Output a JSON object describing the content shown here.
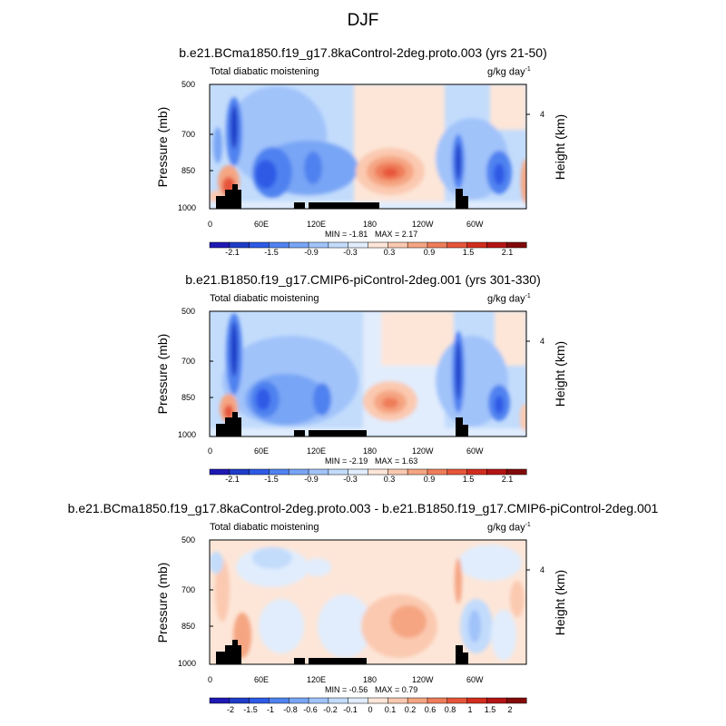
{
  "title": "DJF",
  "chart_data": [
    {
      "type": "heatmap",
      "title": "b.e21.BCma1850.f19_g17.8kaControl-2deg.proto.003 (yrs 21-50)",
      "variable": "Total diabatic moistening",
      "units": "g/kg day",
      "units_exp": "-1",
      "ylabel": "Pressure (mb)",
      "ylabel_right": "Height (km)",
      "y_ticks": [
        "500",
        "700",
        "850",
        "1000"
      ],
      "y_right_ticks": [
        "4"
      ],
      "x_ticks": [
        "0",
        "60E",
        "120E",
        "180",
        "120W",
        "60W"
      ],
      "min_label": "MIN = -1.81",
      "max_label": "MAX =  2.17",
      "min": -1.81,
      "max": 2.17,
      "colorbar_labels": [
        "-2.1",
        "-1.5",
        "-0.9",
        "-0.3",
        "0.3",
        "0.9",
        "1.5",
        "2.1"
      ],
      "colorbar_colors": [
        "#1e19b4",
        "#1e3cc8",
        "#2d5ae6",
        "#5082f0",
        "#78a5f5",
        "#a0c3fa",
        "#c3dcfc",
        "#e1edfd",
        "#fde6d8",
        "#fbc9b0",
        "#f5a582",
        "#ef7d5a",
        "#e6553a",
        "#d22d1e",
        "#b41414",
        "#820a0a"
      ]
    },
    {
      "type": "heatmap",
      "title": "b.e21.B1850.f19_g17.CMIP6-piControl-2deg.001 (yrs 301-330)",
      "variable": "Total diabatic moistening",
      "units": "g/kg day",
      "units_exp": "-1",
      "ylabel": "Pressure (mb)",
      "ylabel_right": "Height (km)",
      "y_ticks": [
        "500",
        "700",
        "850",
        "1000"
      ],
      "y_right_ticks": [
        "4"
      ],
      "x_ticks": [
        "0",
        "60E",
        "120E",
        "180",
        "120W",
        "60W"
      ],
      "min_label": "MIN = -2.19",
      "max_label": "MAX =  1.63",
      "min": -2.19,
      "max": 1.63,
      "colorbar_labels": [
        "-2.1",
        "-1.5",
        "-0.9",
        "-0.3",
        "0.3",
        "0.9",
        "1.5",
        "2.1"
      ],
      "colorbar_colors": [
        "#1e19b4",
        "#1e3cc8",
        "#2d5ae6",
        "#5082f0",
        "#78a5f5",
        "#a0c3fa",
        "#c3dcfc",
        "#e1edfd",
        "#fde6d8",
        "#fbc9b0",
        "#f5a582",
        "#ef7d5a",
        "#e6553a",
        "#d22d1e",
        "#b41414",
        "#820a0a"
      ]
    },
    {
      "type": "heatmap",
      "title": "b.e21.BCma1850.f19_g17.8kaControl-2deg.proto.003 - b.e21.B1850.f19_g17.CMIP6-piControl-2deg.001",
      "variable": "Total diabatic moistening",
      "units": "g/kg day",
      "units_exp": "-1",
      "ylabel": "Pressure (mb)",
      "ylabel_right": "Height (km)",
      "y_ticks": [
        "500",
        "700",
        "850",
        "1000"
      ],
      "y_right_ticks": [
        "4"
      ],
      "x_ticks": [
        "0",
        "60E",
        "120E",
        "180",
        "120W",
        "60W"
      ],
      "min_label": "MIN = -0.56",
      "max_label": "MAX =  0.79",
      "min": -0.56,
      "max": 0.79,
      "colorbar_labels": [
        "-2",
        "-1.5",
        "-1",
        "-0.8",
        "-0.6",
        "-0.2",
        "-0.1",
        "0",
        "0.1",
        "0.2",
        "0.6",
        "0.8",
        "1",
        "1.5",
        "2"
      ],
      "colorbar_colors": [
        "#1e19b4",
        "#1e3cc8",
        "#2d5ae6",
        "#5082f0",
        "#78a5f5",
        "#a0c3fa",
        "#c3dcfc",
        "#e1edfd",
        "#fde6d8",
        "#fbc9b0",
        "#f5a582",
        "#ef7d5a",
        "#e6553a",
        "#d22d1e",
        "#b41414",
        "#820a0a"
      ]
    }
  ]
}
